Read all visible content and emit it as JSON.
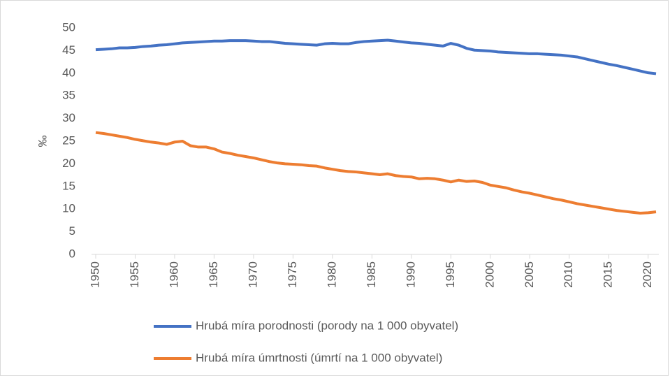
{
  "chart_data": {
    "type": "line",
    "y_label": "‰",
    "x": [
      1950,
      1951,
      1952,
      1953,
      1954,
      1955,
      1956,
      1957,
      1958,
      1959,
      1960,
      1961,
      1962,
      1963,
      1964,
      1965,
      1966,
      1967,
      1968,
      1969,
      1970,
      1971,
      1972,
      1973,
      1974,
      1975,
      1976,
      1977,
      1978,
      1979,
      1980,
      1981,
      1982,
      1983,
      1984,
      1985,
      1986,
      1987,
      1988,
      1989,
      1990,
      1991,
      1992,
      1993,
      1994,
      1995,
      1996,
      1997,
      1998,
      1999,
      2000,
      2001,
      2002,
      2003,
      2004,
      2005,
      2006,
      2007,
      2008,
      2009,
      2010,
      2011,
      2012,
      2013,
      2014,
      2015,
      2016,
      2017,
      2018,
      2019,
      2020,
      2021
    ],
    "series": [
      {
        "name": "Hrubá míra porodnosti (porody na 1 000 obyvatel)",
        "color": "#4472c4",
        "values": [
          45.2,
          45.3,
          45.4,
          45.6,
          45.6,
          45.7,
          45.9,
          46.0,
          46.2,
          46.3,
          46.5,
          46.7,
          46.8,
          46.9,
          47.0,
          47.1,
          47.1,
          47.2,
          47.2,
          47.2,
          47.1,
          47.0,
          47.0,
          46.8,
          46.6,
          46.5,
          46.4,
          46.3,
          46.2,
          46.5,
          46.6,
          46.5,
          46.5,
          46.8,
          47.0,
          47.1,
          47.2,
          47.3,
          47.1,
          46.9,
          46.7,
          46.6,
          46.4,
          46.2,
          46.0,
          46.6,
          46.2,
          45.5,
          45.1,
          45.0,
          44.9,
          44.7,
          44.6,
          44.5,
          44.4,
          44.3,
          44.3,
          44.2,
          44.1,
          44.0,
          43.8,
          43.6,
          43.2,
          42.8,
          42.4,
          42.0,
          41.7,
          41.3,
          40.9,
          40.5,
          40.1,
          39.9
        ]
      },
      {
        "name": "Hrubá míra úmrtnosti (úmrtí na 1 000 obyvatel)",
        "color": "#ed7d31",
        "values": [
          26.9,
          26.7,
          26.4,
          26.1,
          25.8,
          25.4,
          25.1,
          24.8,
          24.6,
          24.3,
          24.8,
          25.0,
          24.0,
          23.7,
          23.7,
          23.3,
          22.6,
          22.3,
          21.9,
          21.6,
          21.3,
          20.9,
          20.5,
          20.2,
          20.0,
          19.9,
          19.8,
          19.6,
          19.5,
          19.1,
          18.8,
          18.5,
          18.3,
          18.2,
          18.0,
          17.8,
          17.6,
          17.8,
          17.4,
          17.2,
          17.1,
          16.7,
          16.8,
          16.7,
          16.4,
          16.0,
          16.4,
          16.1,
          16.2,
          15.9,
          15.3,
          15.0,
          14.7,
          14.2,
          13.8,
          13.5,
          13.1,
          12.7,
          12.3,
          12.0,
          11.6,
          11.2,
          10.9,
          10.6,
          10.3,
          10.0,
          9.7,
          9.5,
          9.3,
          9.1,
          9.2,
          9.4
        ]
      }
    ],
    "xlim": [
      1950,
      2021
    ],
    "xticks": [
      1950,
      1955,
      1960,
      1965,
      1970,
      1975,
      1980,
      1985,
      1990,
      1995,
      2000,
      2005,
      2010,
      2015,
      2020
    ],
    "ylim": [
      0,
      50
    ],
    "yticks": [
      0,
      5,
      10,
      15,
      20,
      25,
      30,
      35,
      40,
      45,
      50
    ],
    "grid": false
  }
}
